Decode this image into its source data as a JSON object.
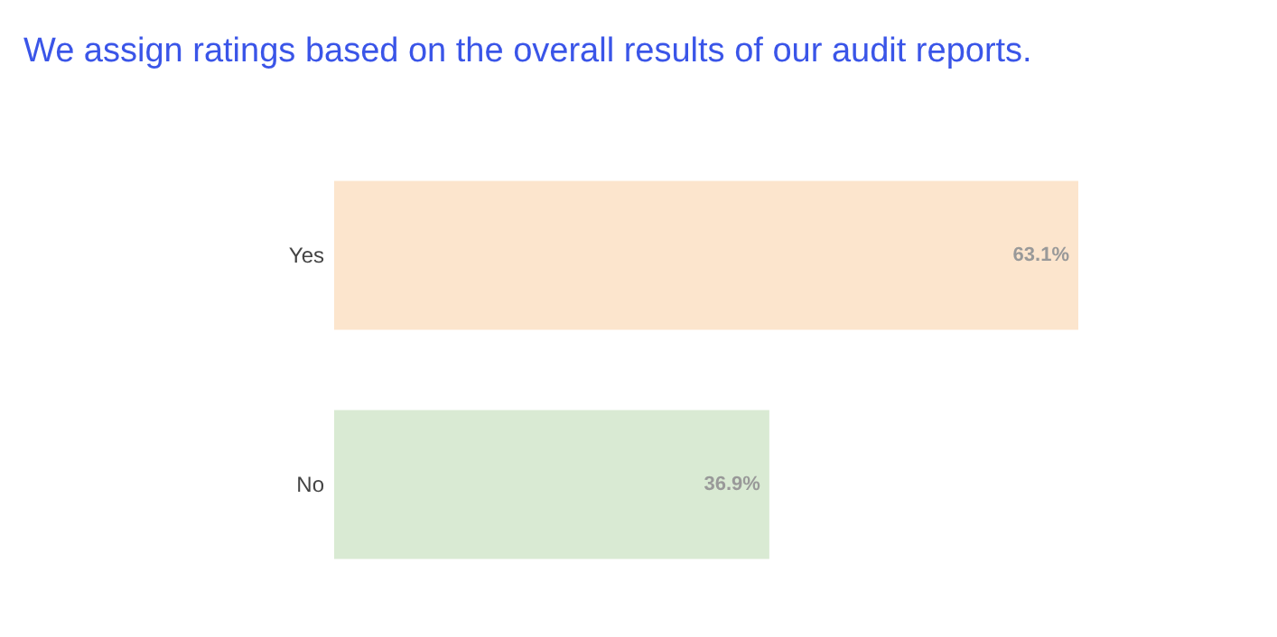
{
  "chart_data": {
    "type": "bar",
    "orientation": "horizontal",
    "title": "We assign ratings based on the overall results of our audit reports.",
    "categories": [
      "Yes",
      "No"
    ],
    "values": [
      63.1,
      36.9
    ],
    "value_labels": [
      "63.1%",
      "36.9%"
    ],
    "colors": [
      "#fce5cd",
      "#d9ead3"
    ]
  }
}
